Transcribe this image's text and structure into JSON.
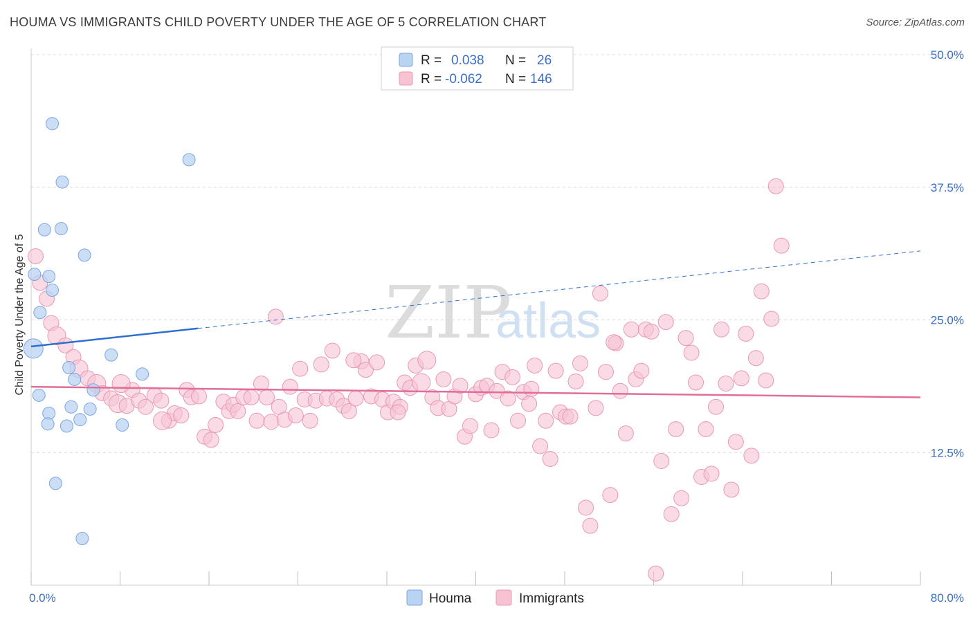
{
  "title": "HOUMA VS IMMIGRANTS CHILD POVERTY UNDER THE AGE OF 5 CORRELATION CHART",
  "source": "Source: ZipAtlas.com",
  "watermark": {
    "zip": "ZIP",
    "atlas": "atlas"
  },
  "colors": {
    "houma_fill": "#b9d3f3",
    "houma_stroke": "#7aa6e0",
    "houma_line": "#2f6fcf",
    "imm_fill": "#f7c3d3",
    "imm_stroke": "#e899b3",
    "imm_line": "#e06e98",
    "tick_text": "#3a6fc4",
    "grid": "#d8d8d8"
  },
  "legend": {
    "rows": [
      {
        "r_label": "R =",
        "r_value": "0.038",
        "n_label": "N =",
        "n_value": "26"
      },
      {
        "r_label": "R =",
        "r_value": "-0.062",
        "n_label": "N =",
        "n_value": "146"
      }
    ]
  },
  "chart_data": {
    "type": "scatter",
    "title": "HOUMA VS IMMIGRANTS CHILD POVERTY UNDER THE AGE OF 5 CORRELATION CHART",
    "xlabel": "",
    "ylabel": "Child Poverty Under the Age of 5",
    "xlim": [
      0,
      80
    ],
    "ylim": [
      0,
      50
    ],
    "x_tick_labels": [
      "0.0%",
      "80.0%"
    ],
    "y_ticks": [
      12.5,
      25.0,
      37.5,
      50.0
    ],
    "y_tick_labels": [
      "12.5%",
      "25.0%",
      "37.5%",
      "50.0%"
    ],
    "grid": "horizontal dashed",
    "legend_position": "top-center",
    "series": [
      {
        "name": "Houma",
        "trend": {
          "x": [
            0,
            15
          ],
          "y": [
            22.5,
            24.2
          ],
          "extended_to": [
            80,
            31.5
          ]
        },
        "points": [
          [
            0.2,
            22.3,
            14
          ],
          [
            1.9,
            43.5,
            9
          ],
          [
            2.8,
            38.0,
            9
          ],
          [
            14.2,
            40.1,
            9
          ],
          [
            1.2,
            33.5,
            9
          ],
          [
            2.7,
            33.6,
            9
          ],
          [
            4.8,
            31.1,
            9
          ],
          [
            1.6,
            29.1,
            9
          ],
          [
            0.3,
            29.3,
            9
          ],
          [
            1.9,
            27.8,
            9
          ],
          [
            0.8,
            25.7,
            9
          ],
          [
            7.2,
            21.7,
            9
          ],
          [
            3.4,
            20.5,
            9
          ],
          [
            10.0,
            19.9,
            9
          ],
          [
            3.9,
            19.4,
            9
          ],
          [
            5.6,
            18.4,
            9
          ],
          [
            0.7,
            17.9,
            9
          ],
          [
            3.6,
            16.8,
            9
          ],
          [
            5.3,
            16.6,
            9
          ],
          [
            1.6,
            16.2,
            9
          ],
          [
            4.4,
            15.6,
            9
          ],
          [
            1.5,
            15.2,
            9
          ],
          [
            3.2,
            15.0,
            9
          ],
          [
            8.2,
            15.1,
            9
          ],
          [
            2.2,
            9.6,
            9
          ],
          [
            4.6,
            4.4,
            9
          ]
        ]
      },
      {
        "name": "Immigrants",
        "trend": {
          "x": [
            0,
            80
          ],
          "y": [
            18.7,
            17.7
          ]
        },
        "points": [
          [
            0.4,
            31.0,
            11
          ],
          [
            0.8,
            28.5,
            11
          ],
          [
            1.4,
            27.0,
            11
          ],
          [
            1.8,
            24.7,
            11
          ],
          [
            2.3,
            23.5,
            13
          ],
          [
            3.1,
            22.6,
            11
          ],
          [
            3.8,
            21.5,
            11
          ],
          [
            4.3,
            20.4,
            13
          ],
          [
            5.1,
            19.5,
            11
          ],
          [
            5.9,
            19.0,
            13
          ],
          [
            6.4,
            18.1,
            11
          ],
          [
            7.2,
            17.6,
            11
          ],
          [
            7.8,
            17.1,
            13
          ],
          [
            8.6,
            16.9,
            11
          ],
          [
            9.1,
            18.4,
            11
          ],
          [
            9.7,
            17.4,
            11
          ],
          [
            10.3,
            16.8,
            11
          ],
          [
            11.1,
            17.9,
            11
          ],
          [
            11.7,
            17.4,
            11
          ],
          [
            12.4,
            15.5,
            11
          ],
          [
            12.9,
            16.2,
            11
          ],
          [
            13.5,
            16.0,
            11
          ],
          [
            14.0,
            18.4,
            11
          ],
          [
            14.4,
            17.7,
            11
          ],
          [
            15.1,
            17.8,
            11
          ],
          [
            15.6,
            14.0,
            11
          ],
          [
            16.2,
            13.7,
            11
          ],
          [
            16.6,
            15.1,
            11
          ],
          [
            17.3,
            17.3,
            11
          ],
          [
            17.8,
            16.4,
            11
          ],
          [
            18.2,
            17.0,
            11
          ],
          [
            18.6,
            16.4,
            11
          ],
          [
            19.1,
            17.7,
            11
          ],
          [
            19.8,
            17.7,
            11
          ],
          [
            20.3,
            15.5,
            11
          ],
          [
            20.7,
            19.0,
            11
          ],
          [
            21.2,
            17.7,
            11
          ],
          [
            21.6,
            15.4,
            11
          ],
          [
            22.3,
            16.8,
            11
          ],
          [
            22.8,
            15.6,
            11
          ],
          [
            23.3,
            18.7,
            11
          ],
          [
            23.8,
            16.0,
            11
          ],
          [
            24.2,
            20.4,
            11
          ],
          [
            24.6,
            17.5,
            11
          ],
          [
            25.1,
            15.5,
            11
          ],
          [
            25.6,
            17.4,
            11
          ],
          [
            26.1,
            20.8,
            11
          ],
          [
            26.6,
            17.6,
            11
          ],
          [
            27.1,
            22.1,
            11
          ],
          [
            27.5,
            17.5,
            11
          ],
          [
            28.1,
            16.9,
            11
          ],
          [
            28.6,
            16.4,
            11
          ],
          [
            29.2,
            17.6,
            11
          ],
          [
            29.7,
            21.1,
            11
          ],
          [
            30.1,
            20.3,
            11
          ],
          [
            30.6,
            17.8,
            11
          ],
          [
            31.1,
            21.0,
            11
          ],
          [
            31.6,
            17.5,
            11
          ],
          [
            32.1,
            16.3,
            11
          ],
          [
            32.6,
            17.3,
            11
          ],
          [
            33.2,
            16.8,
            11
          ],
          [
            33.6,
            19.1,
            11
          ],
          [
            34.1,
            18.6,
            11
          ],
          [
            34.6,
            20.7,
            11
          ],
          [
            35.1,
            19.1,
            13
          ],
          [
            35.6,
            21.2,
            13
          ],
          [
            36.1,
            17.7,
            11
          ],
          [
            36.6,
            16.7,
            11
          ],
          [
            37.1,
            19.4,
            11
          ],
          [
            37.6,
            16.6,
            11
          ],
          [
            38.1,
            17.8,
            11
          ],
          [
            38.6,
            18.8,
            11
          ],
          [
            39.0,
            14.0,
            11
          ],
          [
            39.5,
            15.0,
            11
          ],
          [
            40.0,
            18.0,
            11
          ],
          [
            40.5,
            18.6,
            11
          ],
          [
            41.0,
            18.8,
            11
          ],
          [
            41.4,
            14.6,
            11
          ],
          [
            41.9,
            18.3,
            11
          ],
          [
            42.4,
            20.1,
            11
          ],
          [
            42.9,
            17.6,
            11
          ],
          [
            43.3,
            19.6,
            11
          ],
          [
            43.8,
            15.5,
            11
          ],
          [
            44.3,
            18.2,
            11
          ],
          [
            44.8,
            17.1,
            11
          ],
          [
            45.3,
            20.7,
            11
          ],
          [
            45.8,
            13.1,
            11
          ],
          [
            46.3,
            15.5,
            11
          ],
          [
            46.7,
            11.9,
            11
          ],
          [
            47.2,
            20.2,
            11
          ],
          [
            47.6,
            16.3,
            11
          ],
          [
            48.1,
            15.9,
            11
          ],
          [
            48.5,
            15.9,
            11
          ],
          [
            49.0,
            19.2,
            11
          ],
          [
            49.4,
            20.9,
            11
          ],
          [
            49.9,
            7.3,
            11
          ],
          [
            50.3,
            5.6,
            11
          ],
          [
            50.8,
            16.7,
            11
          ],
          [
            51.2,
            27.5,
            11
          ],
          [
            51.7,
            20.1,
            11
          ],
          [
            52.1,
            8.5,
            11
          ],
          [
            52.6,
            22.8,
            11
          ],
          [
            53.0,
            18.3,
            11
          ],
          [
            53.5,
            14.3,
            11
          ],
          [
            54.0,
            24.1,
            11
          ],
          [
            54.4,
            19.4,
            11
          ],
          [
            54.9,
            20.2,
            11
          ],
          [
            55.3,
            24.1,
            11
          ],
          [
            55.8,
            23.9,
            11
          ],
          [
            56.2,
            1.1,
            11
          ],
          [
            56.7,
            11.7,
            11
          ],
          [
            57.1,
            24.8,
            11
          ],
          [
            57.6,
            6.7,
            11
          ],
          [
            58.0,
            14.7,
            11
          ],
          [
            58.5,
            8.2,
            11
          ],
          [
            58.9,
            23.3,
            11
          ],
          [
            59.4,
            21.9,
            11
          ],
          [
            59.8,
            19.1,
            11
          ],
          [
            60.3,
            10.2,
            11
          ],
          [
            60.7,
            14.7,
            11
          ],
          [
            61.2,
            10.5,
            11
          ],
          [
            61.6,
            16.8,
            11
          ],
          [
            62.1,
            24.1,
            11
          ],
          [
            62.5,
            19.0,
            11
          ],
          [
            63.0,
            9.0,
            11
          ],
          [
            63.4,
            13.5,
            11
          ],
          [
            63.9,
            19.5,
            11
          ],
          [
            64.3,
            23.7,
            11
          ],
          [
            64.8,
            12.2,
            11
          ],
          [
            65.2,
            21.4,
            11
          ],
          [
            65.7,
            27.7,
            11
          ],
          [
            66.1,
            19.3,
            11
          ],
          [
            66.6,
            25.1,
            11
          ],
          [
            67.0,
            37.6,
            11
          ],
          [
            67.5,
            32.0,
            11
          ],
          [
            52.4,
            22.9,
            11
          ],
          [
            22.0,
            25.3,
            11
          ],
          [
            29.0,
            21.2,
            11
          ],
          [
            45.0,
            18.5,
            11
          ],
          [
            33.0,
            16.3,
            11
          ],
          [
            11.8,
            15.5,
            13
          ],
          [
            8.1,
            19.0,
            13
          ]
        ]
      }
    ]
  },
  "bottom_legend": [
    {
      "label": "Houma"
    },
    {
      "label": "Immigrants"
    }
  ]
}
